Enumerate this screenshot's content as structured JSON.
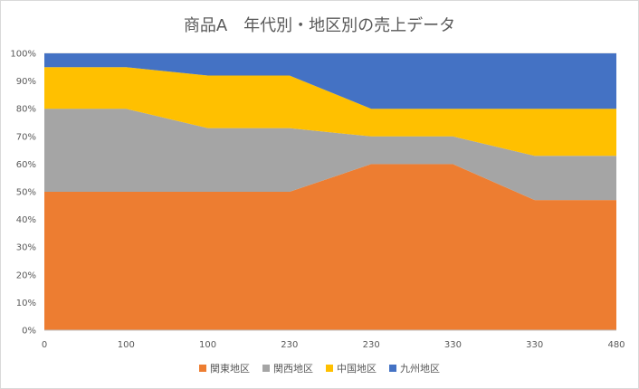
{
  "chart_data": {
    "type": "area",
    "stacked": "percent",
    "title": "商品A　年代別・地区別の売上データ",
    "categories": [
      "0",
      "100",
      "100",
      "230",
      "230",
      "330",
      "330",
      "480"
    ],
    "yticks": [
      "0%",
      "10%",
      "20%",
      "30%",
      "40%",
      "50%",
      "60%",
      "70%",
      "80%",
      "90%",
      "100%"
    ],
    "ylim": [
      0,
      100
    ],
    "grid": true,
    "legend_position": "bottom",
    "series": [
      {
        "name": "関東地区",
        "color": "#ED7D31",
        "values": [
          50,
          50,
          50,
          50,
          60,
          60,
          47,
          47
        ]
      },
      {
        "name": "関西地区",
        "color": "#A5A5A5",
        "values": [
          30,
          30,
          23,
          23,
          10,
          10,
          16,
          16
        ]
      },
      {
        "name": "中国地区",
        "color": "#FFC000",
        "values": [
          15,
          15,
          19,
          19,
          10,
          10,
          17,
          17
        ]
      },
      {
        "name": "九州地区",
        "color": "#4472C4",
        "values": [
          5,
          5,
          8,
          8,
          20,
          20,
          20,
          20
        ]
      }
    ]
  }
}
